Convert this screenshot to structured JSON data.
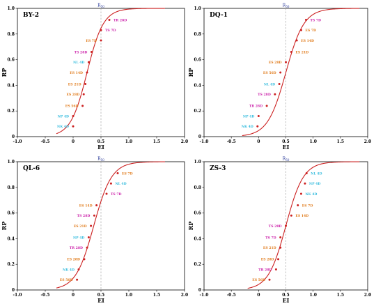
{
  "colors": {
    "curve": "#cc2020",
    "point": "#cc2020",
    "frame": "#000000",
    "midline": "#9a9a9a",
    "ES": "#e07a1a",
    "NL": "#33bbdd",
    "NP": "#33bbdd",
    "NK": "#33bbdd",
    "TS": "#cc22aa",
    "TR": "#cc22aa"
  },
  "chart_data": [
    {
      "type": "scatter",
      "title": "BY-2",
      "xlabel": "EI",
      "ylabel": "RP",
      "midline_label": "R50",
      "midline_x": 0.5,
      "xlim": [
        -1.0,
        2.0
      ],
      "ylim": [
        0,
        1.0
      ],
      "xticks": [
        "-1.0",
        "-0.5",
        "0",
        "0.5",
        "1.0",
        "1.5",
        "2.0"
      ],
      "yticks": [
        "0",
        "0.2",
        "0.4",
        "0.6",
        "0.8",
        "1.0"
      ],
      "curve": {
        "midpoint": 0.25,
        "slope": 6.8,
        "x_start": -0.3,
        "x_end": 1.65
      },
      "points": [
        {
          "label": "NK 4D",
          "x": 0.0,
          "y": 0.08,
          "color_key": "NK",
          "label_side": "left"
        },
        {
          "label": "NP 4D",
          "x": 0.0,
          "y": 0.16,
          "color_key": "NP",
          "label_side": "left"
        },
        {
          "label": "ES 56D",
          "x": 0.17,
          "y": 0.24,
          "color_key": "ES",
          "label_side": "left"
        },
        {
          "label": "ES 28D",
          "x": 0.19,
          "y": 0.33,
          "color_key": "ES",
          "label_side": "left"
        },
        {
          "label": "ES 21D",
          "x": 0.22,
          "y": 0.41,
          "color_key": "ES",
          "label_side": "left"
        },
        {
          "label": "ES 14D",
          "x": 0.25,
          "y": 0.5,
          "color_key": "ES",
          "label_side": "left"
        },
        {
          "label": "NL 4D",
          "x": 0.28,
          "y": 0.58,
          "color_key": "NL",
          "label_side": "left"
        },
        {
          "label": "TS 28D",
          "x": 0.33,
          "y": 0.66,
          "color_key": "TS",
          "label_side": "left"
        },
        {
          "label": "ES 7D",
          "x": 0.5,
          "y": 0.75,
          "color_key": "ES",
          "label_side": "left"
        },
        {
          "label": "TS 7D",
          "x": 0.5,
          "y": 0.83,
          "color_key": "TS",
          "label_side": "right"
        },
        {
          "label": "TR 28D",
          "x": 0.65,
          "y": 0.91,
          "color_key": "TR",
          "label_side": "right"
        }
      ]
    },
    {
      "type": "scatter",
      "title": "DQ-1",
      "xlabel": "EI",
      "ylabel": "RP",
      "midline_label": "R50",
      "midline_x": 0.5,
      "xlim": [
        -1.0,
        2.0
      ],
      "ylim": [
        0,
        1.0
      ],
      "xticks": [
        "-1.0",
        "-0.5",
        "0",
        "0.5",
        "1.0",
        "1.5",
        "2.0"
      ],
      "yticks": [
        "0",
        "0.2",
        "0.4",
        "0.6",
        "0.8",
        "1.0"
      ],
      "curve": {
        "midpoint": 0.5,
        "slope": 6.0,
        "x_start": -0.3,
        "x_end": 1.85
      },
      "points": [
        {
          "label": "NK 4D",
          "x": -0.02,
          "y": 0.08,
          "color_key": "NK",
          "label_side": "left"
        },
        {
          "label": "NP 4D",
          "x": 0.0,
          "y": 0.16,
          "color_key": "NP",
          "label_side": "left"
        },
        {
          "label": "TR 28D",
          "x": 0.15,
          "y": 0.24,
          "color_key": "TR",
          "label_side": "left"
        },
        {
          "label": "TS 28D",
          "x": 0.3,
          "y": 0.33,
          "color_key": "TS",
          "label_side": "left"
        },
        {
          "label": "NL 4D",
          "x": 0.38,
          "y": 0.41,
          "color_key": "NL",
          "label_side": "left"
        },
        {
          "label": "ES 56D",
          "x": 0.4,
          "y": 0.5,
          "color_key": "ES",
          "label_side": "left"
        },
        {
          "label": "ES 28D",
          "x": 0.5,
          "y": 0.58,
          "color_key": "ES",
          "label_side": "left"
        },
        {
          "label": "ES 21D",
          "x": 0.6,
          "y": 0.66,
          "color_key": "ES",
          "label_side": "right"
        },
        {
          "label": "ES 14D",
          "x": 0.7,
          "y": 0.75,
          "color_key": "ES",
          "label_side": "right"
        },
        {
          "label": "ES 7D",
          "x": 0.78,
          "y": 0.83,
          "color_key": "ES",
          "label_side": "right"
        },
        {
          "label": "TS 7D",
          "x": 0.87,
          "y": 0.91,
          "color_key": "TS",
          "label_side": "right"
        }
      ]
    },
    {
      "type": "scatter",
      "title": "QL-6",
      "xlabel": "EI",
      "ylabel": "RP",
      "midline_label": "R50",
      "midline_x": 0.5,
      "xlim": [
        -1.0,
        2.0
      ],
      "ylim": [
        0,
        1.0
      ],
      "xticks": [
        "-1.0",
        "-0.5",
        "0",
        "0.5",
        "1.0",
        "1.5",
        "2.0"
      ],
      "yticks": [
        "0",
        "0.2",
        "0.4",
        "0.6",
        "0.8",
        "1.0"
      ],
      "curve": {
        "midpoint": 0.37,
        "slope": 6.2,
        "x_start": -0.3,
        "x_end": 1.65
      },
      "points": [
        {
          "label": "ES 56D",
          "x": 0.07,
          "y": 0.08,
          "color_key": "ES",
          "label_side": "left"
        },
        {
          "label": "NK 4D",
          "x": 0.1,
          "y": 0.16,
          "color_key": "NK",
          "label_side": "left"
        },
        {
          "label": "ES 28D",
          "x": 0.2,
          "y": 0.24,
          "color_key": "ES",
          "label_side": "left"
        },
        {
          "label": "TR 28D",
          "x": 0.25,
          "y": 0.33,
          "color_key": "TR",
          "label_side": "left"
        },
        {
          "label": "NP 4D",
          "x": 0.28,
          "y": 0.41,
          "color_key": "NP",
          "label_side": "left"
        },
        {
          "label": "ES 21D",
          "x": 0.32,
          "y": 0.5,
          "color_key": "ES",
          "label_side": "left"
        },
        {
          "label": "TS 28D",
          "x": 0.38,
          "y": 0.58,
          "color_key": "TS",
          "label_side": "left"
        },
        {
          "label": "ES 14D",
          "x": 0.42,
          "y": 0.66,
          "color_key": "ES",
          "label_side": "left"
        },
        {
          "label": "TS 7D",
          "x": 0.6,
          "y": 0.75,
          "color_key": "TS",
          "label_side": "right"
        },
        {
          "label": "NL 4D",
          "x": 0.68,
          "y": 0.83,
          "color_key": "NL",
          "label_side": "right"
        },
        {
          "label": "ES 7D",
          "x": 0.8,
          "y": 0.91,
          "color_key": "ES",
          "label_side": "right"
        }
      ]
    },
    {
      "type": "scatter",
      "title": "ZS-3",
      "xlabel": "EI",
      "ylabel": "RP",
      "midline_label": "R50",
      "midline_x": 0.5,
      "xlim": [
        -1.0,
        2.0
      ],
      "ylim": [
        0,
        1.0
      ],
      "xticks": [
        "-1.0",
        "-0.5",
        "0",
        "0.5",
        "1.0",
        "1.5",
        "2.0"
      ],
      "yticks": [
        "0",
        "0.2",
        "0.4",
        "0.6",
        "0.8",
        "1.0"
      ],
      "curve": {
        "midpoint": 0.5,
        "slope": 6.2,
        "x_start": -0.2,
        "x_end": 1.85
      },
      "points": [
        {
          "label": "ES 56D",
          "x": 0.2,
          "y": 0.08,
          "color_key": "ES",
          "label_side": "left"
        },
        {
          "label": "TR 28D",
          "x": 0.32,
          "y": 0.16,
          "color_key": "TR",
          "label_side": "left"
        },
        {
          "label": "ES 28D",
          "x": 0.36,
          "y": 0.24,
          "color_key": "ES",
          "label_side": "left"
        },
        {
          "label": "ES 21D",
          "x": 0.4,
          "y": 0.33,
          "color_key": "ES",
          "label_side": "left"
        },
        {
          "label": "TS 7D",
          "x": 0.4,
          "y": 0.41,
          "color_key": "TS",
          "label_side": "left"
        },
        {
          "label": "TS 28D",
          "x": 0.5,
          "y": 0.5,
          "color_key": "TS",
          "label_side": "left"
        },
        {
          "label": "ES 14D",
          "x": 0.6,
          "y": 0.58,
          "color_key": "ES",
          "label_side": "right"
        },
        {
          "label": "ES 7D",
          "x": 0.72,
          "y": 0.66,
          "color_key": "ES",
          "label_side": "right"
        },
        {
          "label": "NK 4D",
          "x": 0.78,
          "y": 0.75,
          "color_key": "NK",
          "label_side": "right"
        },
        {
          "label": "NP 4D",
          "x": 0.85,
          "y": 0.83,
          "color_key": "NP",
          "label_side": "right"
        },
        {
          "label": "NL 4D",
          "x": 0.88,
          "y": 0.91,
          "color_key": "NL",
          "label_side": "right"
        }
      ]
    }
  ]
}
